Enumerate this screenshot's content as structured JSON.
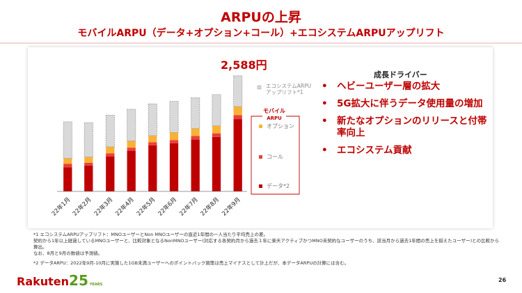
{
  "title": "ARPUの上昇",
  "subtitle": "モバイルARPU（データ+オプション+コール）+エコシステムARPUアップリフト",
  "total_label": "2,588円",
  "drivers": {
    "title": "成長ドライバー",
    "items": [
      "ヘビーユーザー層の拡大",
      "5G拡大に伴うデータ使用量の増加",
      "新たなオプションのリリースと付帯率向上",
      "エコシステム貢献"
    ]
  },
  "chart_data": {
    "type": "bar",
    "stacked": true,
    "categories": [
      "22年1月",
      "22年2月",
      "22年3月",
      "22年4月",
      "22年5月",
      "22年6月",
      "22年7月",
      "22年8月",
      "22年9月"
    ],
    "series": [
      {
        "name": "データ*2",
        "color": "#bf0000",
        "values": [
          540,
          580,
          780,
          910,
          1030,
          1080,
          1160,
          1220,
          1620
        ]
      },
      {
        "name": "コール",
        "color": "#e8403c",
        "values": [
          80,
          60,
          70,
          70,
          70,
          70,
          80,
          80,
          90
        ]
      },
      {
        "name": "オプション",
        "color": "#f9b234",
        "values": [
          120,
          130,
          150,
          150,
          150,
          170,
          170,
          170,
          190
        ]
      },
      {
        "name": "エコシステムARPUアップリフト*1",
        "color": "#d9d9d9",
        "values": [
          820,
          770,
          710,
          710,
          710,
          700,
          690,
          700,
          690
        ]
      }
    ],
    "legend_group_label": "モバイルARPU",
    "legend_labels": {
      "eco": "エコシステムARPUアップリフト*1",
      "option": "オプション",
      "call": "コール",
      "data": "データ*2"
    },
    "axes_visible": {
      "y": false
    },
    "annotation": "2,588円"
  },
  "footnotes": [
    "*1 エコシステムARPUアップリフト：MNOユーザーとNon MNOユーザーの直近1年間の一人当たり平均売上の差。",
    "契約から1年以上経過しているMNOユーザーと、比較対象となるNonMNOユーザー(対応する各契約月から過去１年に楽天アクティブかつMNO未契約なユーザーのうち、該当月から過去1年間の売上を揃えたユーザー)との比較から算出。",
    "なお、8月と9月の数値は予測値。",
    "*2 データARPU：2022年9月-10月に実施した1GB未満ユーザーへのポイントバック施策は売上マイナスとして計上だが、本データARPUの計算には含む。"
  ],
  "logo": {
    "text": "Rakuten",
    "number": "25",
    "sub": "YEARS"
  },
  "page_number": "26"
}
